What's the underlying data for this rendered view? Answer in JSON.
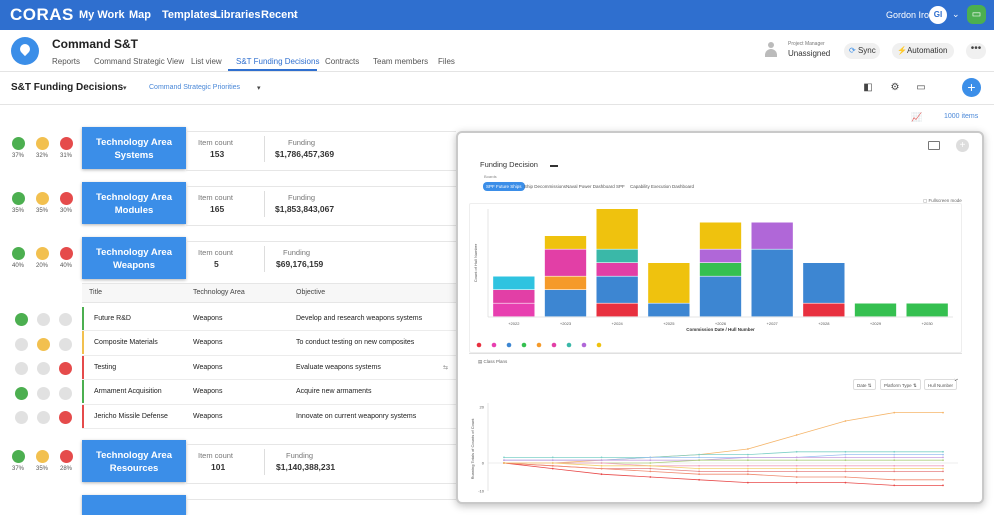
{
  "nav": {
    "logo": "CORAS",
    "items": [
      "My Work",
      "Map",
      "Templates",
      "Libraries",
      "Recent"
    ],
    "user_name": "Gordon Irons",
    "user_initials": "GI"
  },
  "header": {
    "title": "Command S&T",
    "tabs": [
      "Reports",
      "Command Strategic View",
      "List view",
      "S&T Funding Decisions",
      "Contracts",
      "Team members",
      "Files"
    ],
    "active_tab": "S&T Funding Decisions",
    "project_manager_label": "Project Manager",
    "project_manager_value": "Unassigned",
    "sync_label": "Sync",
    "automation_label": "Automation",
    "more_label": "•••"
  },
  "view": {
    "title": "S&T Funding Decisions",
    "subview": "Command Strategic Priorities",
    "items_count": "1000 items",
    "add_label": "+"
  },
  "groups": [
    {
      "name_line1": "Technology Area",
      "name_line2": "Systems",
      "item_count_label": "Item count",
      "item_count": "153",
      "funding_label": "Funding",
      "funding": "$1,786,457,369",
      "votes": [
        "37%",
        "32%",
        "31%"
      ]
    },
    {
      "name_line1": "Technology Area",
      "name_line2": "Modules",
      "item_count_label": "Item count",
      "item_count": "165",
      "funding_label": "Funding",
      "funding": "$1,853,843,067",
      "votes": [
        "35%",
        "35%",
        "30%"
      ]
    },
    {
      "name_line1": "Technology Area",
      "name_line2": "Weapons",
      "item_count_label": "Item count",
      "item_count": "5",
      "funding_label": "Funding",
      "funding": "$69,176,159",
      "votes": [
        "40%",
        "20%",
        "40%"
      ]
    },
    {
      "name_line1": "Technology Area",
      "name_line2": "Resources",
      "item_count_label": "Item count",
      "item_count": "101",
      "funding_label": "Funding",
      "funding": "$1,140,388,231",
      "votes": [
        "37%",
        "35%",
        "28%"
      ]
    }
  ],
  "table": {
    "columns": [
      "Title",
      "Technology Area",
      "Objective"
    ],
    "rows": [
      {
        "title": "Future R&D",
        "area": "Weapons",
        "objective": "Develop and research weapons systems",
        "vote": "up"
      },
      {
        "title": "Composite Materials",
        "area": "Weapons",
        "objective": "To conduct testing on new composites",
        "vote": "mid"
      },
      {
        "title": "Testing",
        "area": "Weapons",
        "objective": "Evaluate weapons systems",
        "vote": "down"
      },
      {
        "title": "Armament Acquisition",
        "area": "Weapons",
        "objective": "Acquire new armaments",
        "vote": "up"
      },
      {
        "title": "Jericho Missile Defense",
        "area": "Weapons",
        "objective": "Innovate on current weaponry systems",
        "vote": "down"
      }
    ]
  },
  "overlay": {
    "title": "Funding Decision",
    "board_label": "Boards",
    "chips": [
      "SPF Future Ships",
      "Ship Decommissions",
      "Naval Power Dashboard",
      "SPF",
      "Capability Execution Dashboard"
    ],
    "fullscreen_label": "Fullscreen mode",
    "class_plans_label": "Class Plans",
    "filters": [
      "Date",
      "Platform Type",
      "Hull Number"
    ]
  },
  "colors": {
    "brand": "#2f6fcf",
    "accent": "#3b8ee8",
    "up": "#4caf50",
    "mid": "#f2c04f",
    "down": "#e54b4b"
  },
  "chart_data": [
    {
      "type": "bar",
      "title": "",
      "xlabel": "Commission Date / Hull Number",
      "ylabel": "Count of Hull Number",
      "categories": [
        "+2022",
        "+2023",
        "+2024",
        "+2025",
        "+2026",
        "+2027",
        "+2028",
        "+2029",
        "+2030"
      ],
      "ylim": [
        0,
        8
      ],
      "series": [
        {
          "name": "red",
          "color": "#e8303f",
          "values": [
            0,
            0,
            1,
            0,
            0,
            0,
            1,
            0,
            0
          ]
        },
        {
          "name": "pink",
          "color": "#e83fb0",
          "values": [
            1,
            0,
            0,
            0,
            0,
            0,
            0,
            0,
            0
          ]
        },
        {
          "name": "blue",
          "color": "#3d86d2",
          "values": [
            0,
            2,
            2,
            1,
            3,
            5,
            3,
            0,
            0
          ]
        },
        {
          "name": "green",
          "color": "#35c050",
          "values": [
            0,
            0,
            0,
            0,
            1,
            0,
            0,
            1,
            1
          ]
        },
        {
          "name": "orange",
          "color": "#f59a2a",
          "values": [
            0,
            1,
            0,
            0,
            0,
            0,
            0,
            0,
            0
          ]
        },
        {
          "name": "magenta",
          "color": "#e23fa6",
          "values": [
            1,
            2,
            1,
            0,
            0,
            0,
            0,
            0,
            0
          ]
        },
        {
          "name": "teal",
          "color": "#3ab8a8",
          "values": [
            0,
            0,
            1,
            0,
            0,
            0,
            0,
            0,
            0
          ]
        },
        {
          "name": "purple",
          "color": "#b067d8",
          "values": [
            0,
            0,
            0,
            0,
            1,
            2,
            0,
            0,
            0
          ]
        },
        {
          "name": "yellow",
          "color": "#efc20e",
          "values": [
            0,
            1,
            3,
            3,
            2,
            0,
            0,
            0,
            0
          ]
        },
        {
          "name": "cyan",
          "color": "#2fc3e0",
          "values": [
            1,
            0,
            0,
            0,
            0,
            0,
            0,
            0,
            0
          ]
        }
      ]
    },
    {
      "type": "line",
      "title": "",
      "xlabel": "",
      "ylabel": "Running Totals of Counts of Count",
      "ylim": [
        -10,
        20
      ],
      "y_ticks": [
        "20",
        "0",
        "-10"
      ],
      "x_points": 10,
      "series": [
        {
          "name": "s1",
          "color": "#f5b56a",
          "values": [
            0,
            0,
            1,
            2,
            3,
            5,
            10,
            15,
            18,
            18
          ]
        },
        {
          "name": "s2",
          "color": "#7fd0c8",
          "values": [
            2,
            2,
            2,
            2,
            3,
            3,
            4,
            4,
            4,
            4
          ]
        },
        {
          "name": "s3",
          "color": "#9ac0f0",
          "values": [
            1,
            1,
            1,
            2,
            2,
            2,
            2,
            3,
            3,
            3
          ]
        },
        {
          "name": "s4",
          "color": "#c7a0e0",
          "values": [
            1,
            1,
            1,
            1,
            1,
            2,
            2,
            2,
            2,
            2
          ]
        },
        {
          "name": "s5",
          "color": "#b0d080",
          "values": [
            0,
            0,
            0,
            0,
            1,
            1,
            1,
            1,
            1,
            1
          ]
        },
        {
          "name": "s6",
          "color": "#f0a0c0",
          "values": [
            0,
            0,
            0,
            -1,
            -1,
            -1,
            -1,
            -1,
            -1,
            -1
          ]
        },
        {
          "name": "s7",
          "color": "#e58080",
          "values": [
            0,
            -1,
            -2,
            -2,
            -3,
            -3,
            -3,
            -3,
            -3,
            -3
          ]
        },
        {
          "name": "s8",
          "color": "#f08a70",
          "values": [
            0,
            -1,
            -2,
            -3,
            -4,
            -4,
            -5,
            -5,
            -6,
            -6
          ]
        },
        {
          "name": "s9",
          "color": "#e84a4a",
          "values": [
            0,
            -2,
            -4,
            -5,
            -6,
            -7,
            -7,
            -7,
            -8,
            -8
          ]
        },
        {
          "name": "s10",
          "color": "#f2d070",
          "values": [
            0,
            0,
            -1,
            -1,
            -2,
            -2,
            -2,
            -2,
            -2,
            -2
          ]
        }
      ]
    }
  ]
}
